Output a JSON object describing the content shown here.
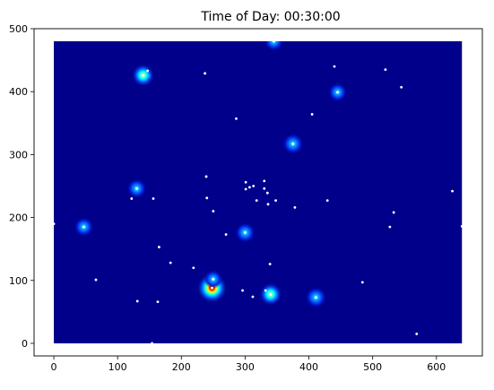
{
  "chart_data": {
    "type": "heatmap",
    "title": "Time of Day: 00:30:00",
    "xlabel": "",
    "ylabel": "",
    "xlim": [
      -31,
      672
    ],
    "ylim": [
      -20,
      500
    ],
    "xticks": [
      0,
      100,
      200,
      300,
      400,
      500,
      600
    ],
    "yticks": [
      0,
      100,
      200,
      300,
      400,
      500
    ],
    "extent": {
      "x": [
        0,
        640
      ],
      "y": [
        0,
        480
      ]
    },
    "grid": false,
    "colormap": "jet",
    "background_color": "#00008b",
    "point_color": "#ffffff",
    "hotspots": [
      {
        "x": 248,
        "y": 88,
        "intensity": 1.0
      },
      {
        "x": 140,
        "y": 426,
        "intensity": 0.55
      },
      {
        "x": 340,
        "y": 78,
        "intensity": 0.55
      },
      {
        "x": 375,
        "y": 317,
        "intensity": 0.45
      },
      {
        "x": 411,
        "y": 73,
        "intensity": 0.45
      },
      {
        "x": 300,
        "y": 176,
        "intensity": 0.4
      },
      {
        "x": 47,
        "y": 185,
        "intensity": 0.35
      },
      {
        "x": 130,
        "y": 246,
        "intensity": 0.35
      },
      {
        "x": 345,
        "y": 480,
        "intensity": 0.35
      },
      {
        "x": 445,
        "y": 399,
        "intensity": 0.3
      },
      {
        "x": 250,
        "y": 102,
        "intensity": 0.3
      }
    ],
    "points": [
      [
        0,
        190
      ],
      [
        47,
        185
      ],
      [
        66,
        101
      ],
      [
        122,
        230
      ],
      [
        130,
        246
      ],
      [
        131,
        67
      ],
      [
        140,
        426
      ],
      [
        147,
        433
      ],
      [
        154,
        0
      ],
      [
        156,
        230
      ],
      [
        163,
        66
      ],
      [
        165,
        153
      ],
      [
        183,
        128
      ],
      [
        219,
        120
      ],
      [
        237,
        429
      ],
      [
        239,
        265
      ],
      [
        240,
        231
      ],
      [
        248,
        88
      ],
      [
        250,
        210
      ],
      [
        250,
        102
      ],
      [
        270,
        173
      ],
      [
        286,
        357
      ],
      [
        296,
        84
      ],
      [
        300,
        176
      ],
      [
        301,
        256
      ],
      [
        301,
        245
      ],
      [
        307,
        248
      ],
      [
        312,
        74
      ],
      [
        313,
        250
      ],
      [
        318,
        227
      ],
      [
        330,
        258
      ],
      [
        330,
        246
      ],
      [
        332,
        84
      ],
      [
        335,
        239
      ],
      [
        336,
        221
      ],
      [
        339,
        126
      ],
      [
        340,
        78
      ],
      [
        345,
        480
      ],
      [
        348,
        227
      ],
      [
        375,
        317
      ],
      [
        378,
        216
      ],
      [
        405,
        364
      ],
      [
        411,
        73
      ],
      [
        429,
        227
      ],
      [
        440,
        440
      ],
      [
        445,
        399
      ],
      [
        484,
        97
      ],
      [
        520,
        435
      ],
      [
        527,
        185
      ],
      [
        533,
        208
      ],
      [
        545,
        407
      ],
      [
        569,
        15
      ],
      [
        625,
        242
      ],
      [
        640,
        186
      ]
    ]
  }
}
